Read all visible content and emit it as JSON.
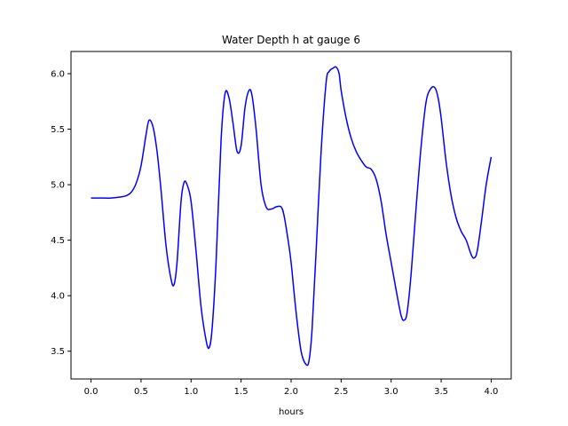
{
  "chart_data": {
    "type": "line",
    "title": "Water Depth h at gauge 6",
    "xlabel": "hours",
    "ylabel": "",
    "xlim": [
      -0.2,
      4.2
    ],
    "ylim": [
      3.25,
      6.2
    ],
    "xticks": [
      0.0,
      0.5,
      1.0,
      1.5,
      2.0,
      2.5,
      3.0,
      3.5,
      4.0
    ],
    "xtick_labels": [
      "0.0",
      "0.5",
      "1.0",
      "1.5",
      "2.0",
      "2.5",
      "3.0",
      "3.5",
      "4.0"
    ],
    "yticks": [
      3.5,
      4.0,
      4.5,
      5.0,
      5.5,
      6.0
    ],
    "ytick_labels": [
      "3.5",
      "4.0",
      "4.5",
      "5.0",
      "5.5",
      "6.0"
    ],
    "grid": false,
    "legend": "none",
    "series": [
      {
        "color": "#0000ff",
        "x": [
          0.0,
          0.1,
          0.2,
          0.3,
          0.35,
          0.4,
          0.45,
          0.5,
          0.55,
          0.58,
          0.62,
          0.66,
          0.7,
          0.75,
          0.8,
          0.83,
          0.86,
          0.9,
          0.93,
          0.96,
          1.0,
          1.05,
          1.1,
          1.15,
          1.18,
          1.21,
          1.25,
          1.3,
          1.34,
          1.38,
          1.42,
          1.46,
          1.5,
          1.54,
          1.58,
          1.61,
          1.65,
          1.7,
          1.75,
          1.8,
          1.85,
          1.9,
          1.93,
          1.97,
          2.0,
          2.05,
          2.1,
          2.15,
          2.18,
          2.21,
          2.25,
          2.3,
          2.35,
          2.38,
          2.42,
          2.45,
          2.48,
          2.5,
          2.55,
          2.6,
          2.65,
          2.7,
          2.75,
          2.8,
          2.85,
          2.9,
          2.95,
          3.0,
          3.05,
          3.1,
          3.13,
          3.16,
          3.2,
          3.25,
          3.3,
          3.35,
          3.4,
          3.44,
          3.47,
          3.5,
          3.55,
          3.6,
          3.65,
          3.7,
          3.75,
          3.8,
          3.83,
          3.86,
          3.9,
          3.95,
          4.0
        ],
        "values": [
          4.88,
          4.88,
          4.88,
          4.89,
          4.9,
          4.93,
          5.01,
          5.17,
          5.45,
          5.58,
          5.52,
          5.3,
          4.95,
          4.45,
          4.15,
          4.1,
          4.3,
          4.85,
          5.02,
          5.0,
          4.85,
          4.4,
          3.9,
          3.6,
          3.53,
          3.7,
          4.3,
          5.4,
          5.82,
          5.78,
          5.55,
          5.3,
          5.35,
          5.7,
          5.85,
          5.8,
          5.5,
          5.0,
          4.8,
          4.78,
          4.8,
          4.8,
          4.72,
          4.5,
          4.3,
          3.85,
          3.5,
          3.38,
          3.42,
          3.7,
          4.4,
          5.3,
          5.92,
          6.02,
          6.05,
          6.06,
          6.0,
          5.85,
          5.6,
          5.42,
          5.3,
          5.22,
          5.16,
          5.14,
          5.05,
          4.85,
          4.55,
          4.3,
          4.05,
          3.82,
          3.78,
          3.85,
          4.2,
          4.8,
          5.35,
          5.75,
          5.87,
          5.87,
          5.78,
          5.6,
          5.2,
          4.9,
          4.7,
          4.58,
          4.5,
          4.37,
          4.34,
          4.4,
          4.65,
          5.0,
          5.25
        ]
      }
    ]
  }
}
